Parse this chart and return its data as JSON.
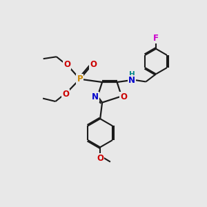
{
  "background_color": "#e8e8e8",
  "bond_color": "#1a1a1a",
  "colors": {
    "N": "#0000cc",
    "O": "#cc0000",
    "P": "#cc8800",
    "F": "#cc00cc",
    "H": "#008888",
    "C": "#1a1a1a"
  },
  "figsize": [
    3.0,
    3.0
  ],
  "dpi": 100
}
